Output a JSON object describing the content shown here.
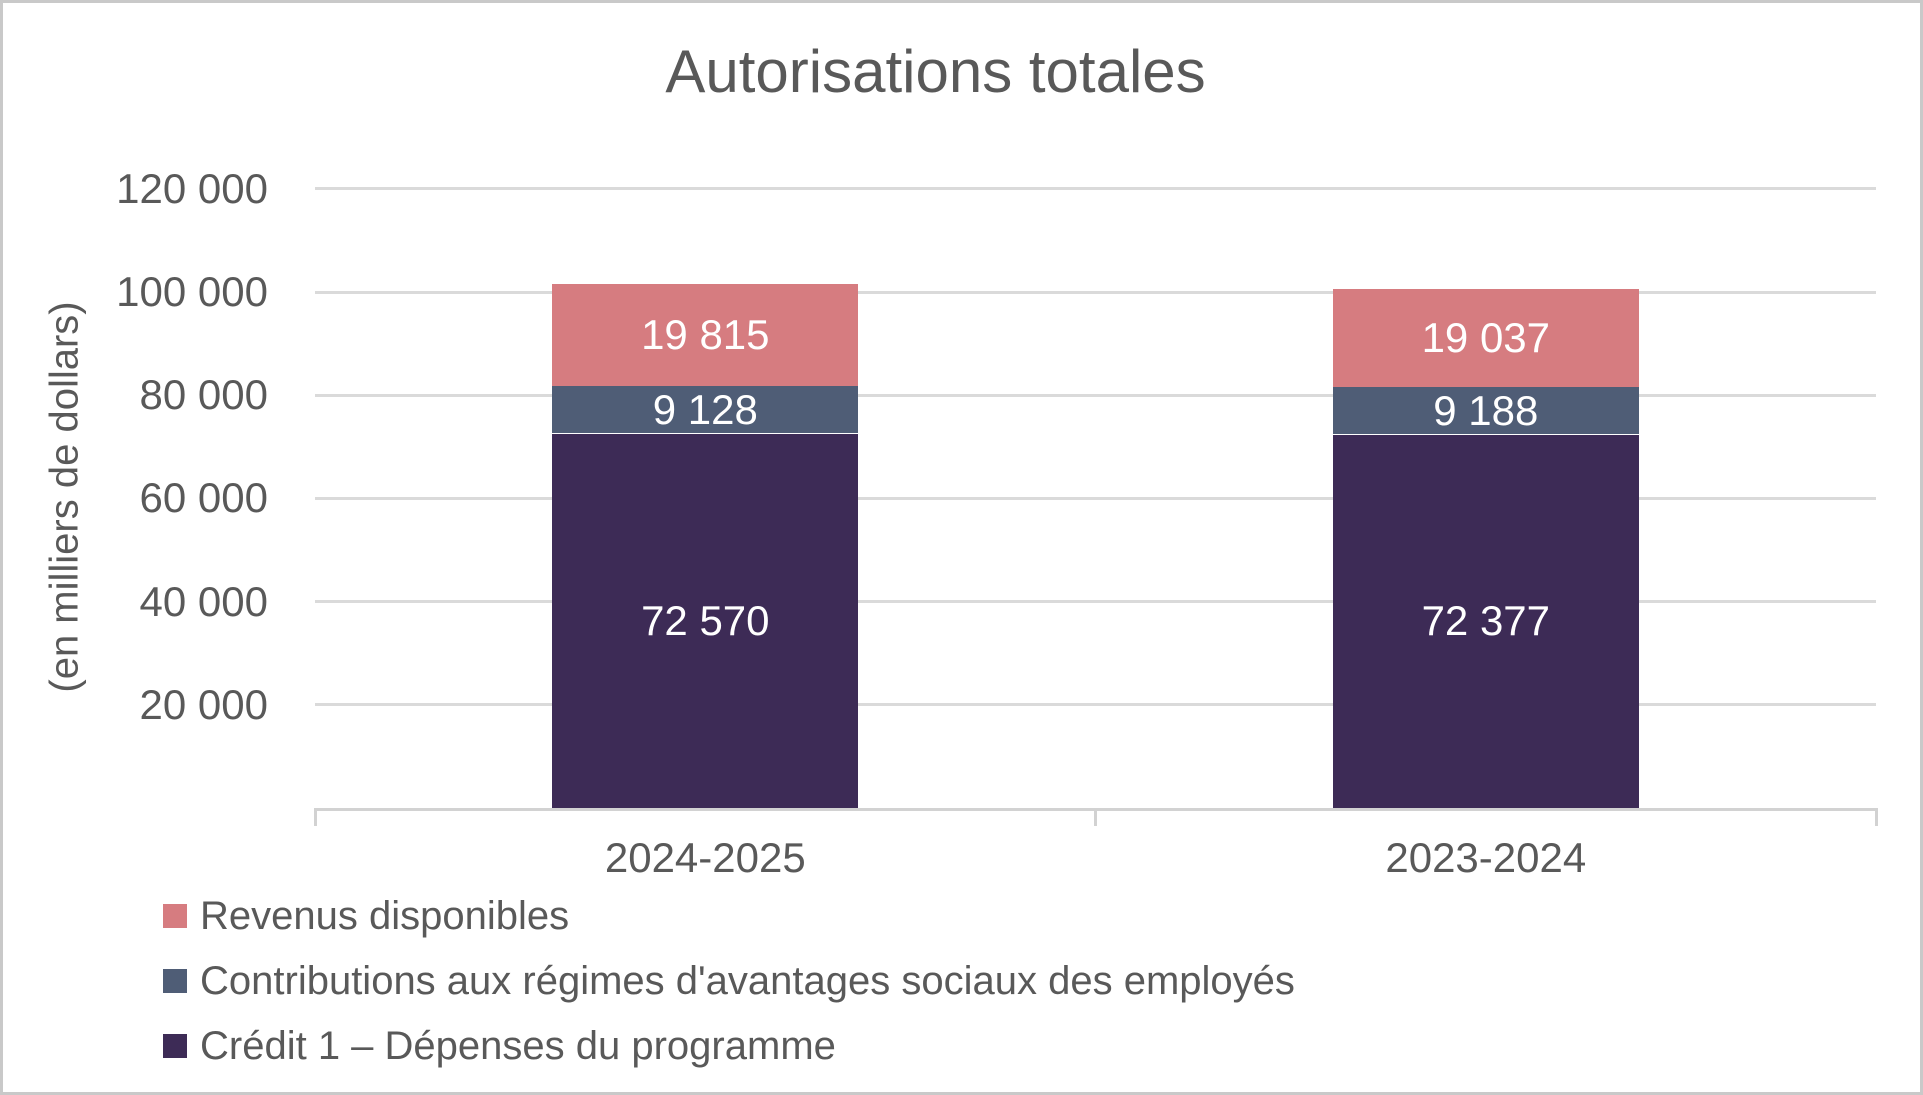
{
  "frame": {
    "background": "#FFFFFF",
    "border_color": "#C9C9C9"
  },
  "chart_data": {
    "type": "bar",
    "stacked": true,
    "title": "Autorisations totales",
    "xlabel": "",
    "ylabel": "(en milliers de dollars)",
    "categories": [
      "2024-2025",
      "2023-2024"
    ],
    "series": [
      {
        "name": "Crédit 1 – Dépenses du programme",
        "color": "#3D2B56",
        "values": [
          72570,
          72377
        ],
        "labels": [
          "72 570",
          "72 377"
        ]
      },
      {
        "name": "Contributions aux régimes d'avantages sociaux des employés",
        "color": "#4F5D76",
        "values": [
          9128,
          9188
        ],
        "labels": [
          "9 128",
          "9 188"
        ]
      },
      {
        "name": "Revenus disponibles",
        "color": "#D67C80",
        "values": [
          19815,
          19037
        ],
        "labels": [
          "19 815",
          "19 037"
        ]
      }
    ],
    "y_ticks": [
      {
        "value": 20000,
        "label": "20 000"
      },
      {
        "value": 40000,
        "label": "40 000"
      },
      {
        "value": 60000,
        "label": "60 000"
      },
      {
        "value": 80000,
        "label": "80 000"
      },
      {
        "value": 100000,
        "label": "100 000"
      },
      {
        "value": 120000,
        "label": "120 000"
      }
    ],
    "ylim": [
      0,
      120000
    ],
    "grid": true,
    "legend_position": "bottom-left",
    "legend_items": [
      {
        "label": "Revenus disponibles",
        "color": "#D67C80"
      },
      {
        "label": "Contributions aux régimes d'avantages sociaux des employés",
        "color": "#4F5D76"
      },
      {
        "label": "Crédit 1 – Dépenses du programme",
        "color": "#3D2B56"
      }
    ],
    "data_label_color": "#FFFFFF",
    "text_color": "#595959",
    "gridline_color": "#DADADA",
    "axis_line_color": "#D2D2D2"
  }
}
